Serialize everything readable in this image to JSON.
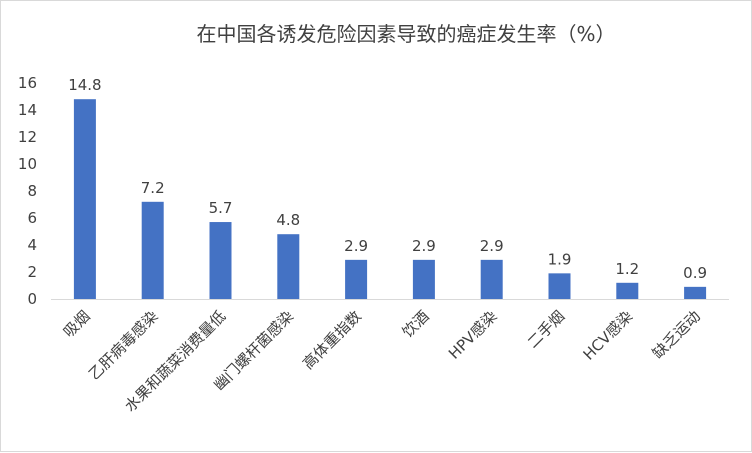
{
  "chart_data": {
    "type": "bar",
    "title": "在中国各诱发危险因素导致的癌症发生率（%）",
    "xlabel": "",
    "ylabel": "",
    "ylim": [
      0,
      16
    ],
    "yticks": [
      0,
      2,
      4,
      6,
      8,
      10,
      12,
      14,
      16
    ],
    "grid": false,
    "legend": "none",
    "bar_color": "#4472c4",
    "categories": [
      "吸烟",
      "乙肝病毒感染",
      "水果和蔬菜消费量低",
      "幽门螺杆菌感染",
      "高体重指数",
      "饮酒",
      "HPV感染",
      "二手烟",
      "HCV感染",
      "缺乏运动"
    ],
    "values": [
      14.8,
      7.2,
      5.7,
      4.8,
      2.9,
      2.9,
      2.9,
      1.9,
      1.2,
      0.9
    ],
    "value_labels": [
      "14.8",
      "7.2",
      "5.7",
      "4.8",
      "2.9",
      "2.9",
      "2.9",
      "1.9",
      "1.2",
      "0.9"
    ]
  }
}
